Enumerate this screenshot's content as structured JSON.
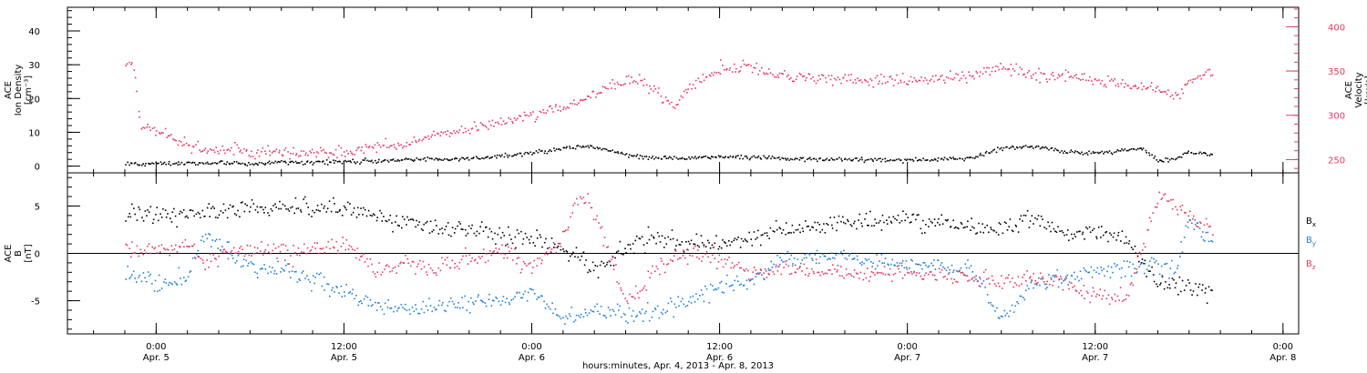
{
  "figure": {
    "xlabel": "hours:minutes, Apr.  4, 2013 - Apr.  8, 2013"
  },
  "colors": {
    "density": "#000000",
    "velocity": "#e8385f",
    "bx": "#000000",
    "by": "#1e80d8",
    "bz": "#e8385f",
    "axis": "#000000"
  },
  "chart_data": [
    {
      "id": "top-panel",
      "type": "scatter",
      "time_range": [
        "2013-04-04 18:20",
        "2013-04-08 01:00"
      ],
      "x_ticks": [
        {
          "time": "2013-04-05 00:00",
          "hm": "0:00",
          "date": "Apr. 5"
        },
        {
          "time": "2013-04-05 12:00",
          "hm": "12:00",
          "date": "Apr. 5"
        },
        {
          "time": "2013-04-06 00:00",
          "hm": "0:00",
          "date": "Apr. 6"
        },
        {
          "time": "2013-04-06 12:00",
          "hm": "12:00",
          "date": "Apr. 6"
        },
        {
          "time": "2013-04-07 00:00",
          "hm": "0:00",
          "date": "Apr. 7"
        },
        {
          "time": "2013-04-07 12:00",
          "hm": "12:00",
          "date": "Apr. 7"
        },
        {
          "time": "2013-04-08 00:00",
          "hm": "0:00",
          "date": "Apr. 8"
        }
      ],
      "left_axis": {
        "label_lines": [
          "ACE",
          "Ion Density",
          "[cm⁻³]"
        ],
        "ylim": [
          -2,
          47
        ],
        "ticks": [
          0,
          10,
          20,
          30,
          40
        ],
        "tick_labels": [
          "0",
          "10",
          "20",
          "30",
          "40"
        ]
      },
      "right_axis": {
        "label_lines": [
          "ACE",
          "Velocity",
          "[km/s]"
        ],
        "ylim": [
          235,
          422
        ],
        "ticks": [
          250,
          300,
          350,
          400
        ],
        "tick_labels": [
          "250",
          "300",
          "350",
          "400"
        ]
      },
      "series": [
        {
          "key": "density",
          "axis": "left",
          "x": [
            "2013-04-04 22:00",
            "2013-04-05 00:00",
            "2013-04-05 04:00",
            "2013-04-05 08:00",
            "2013-04-05 12:00",
            "2013-04-05 16:00",
            "2013-04-05 20:00",
            "2013-04-05 22:00",
            "2013-04-06 00:00",
            "2013-04-06 02:00",
            "2013-04-06 04:00",
            "2013-04-06 06:00",
            "2013-04-06 08:00",
            "2013-04-06 10:00",
            "2013-04-06 12:00",
            "2013-04-06 16:00",
            "2013-04-06 20:00",
            "2013-04-07 00:00",
            "2013-04-07 04:00",
            "2013-04-07 06:00",
            "2013-04-07 08:00",
            "2013-04-07 10:00",
            "2013-04-07 12:00",
            "2013-04-07 14:00",
            "2013-04-07 15:00",
            "2013-04-07 16:00",
            "2013-04-07 17:00",
            "2013-04-07 18:00",
            "2013-04-07 19:30"
          ],
          "y": [
            0.8,
            1.0,
            1.0,
            1.2,
            1.5,
            2.0,
            2.5,
            3.0,
            4.0,
            5.5,
            6.0,
            3.5,
            2.5,
            2.5,
            3.0,
            2.5,
            2.0,
            2.0,
            2.5,
            5.5,
            6.0,
            4.5,
            4.0,
            5.0,
            5.5,
            2.0,
            2.0,
            4.5,
            3.5
          ]
        },
        {
          "key": "velocity",
          "axis": "right",
          "x": [
            "2013-04-04 22:00",
            "2013-04-04 22:30",
            "2013-04-04 23:00",
            "2013-04-05 00:00",
            "2013-04-05 02:00",
            "2013-04-05 04:00",
            "2013-04-05 08:00",
            "2013-04-05 12:00",
            "2013-04-05 16:00",
            "2013-04-05 20:00",
            "2013-04-06 00:00",
            "2013-04-06 03:00",
            "2013-04-06 05:00",
            "2013-04-06 07:00",
            "2013-04-06 09:00",
            "2013-04-06 10:00",
            "2013-04-06 12:00",
            "2013-04-06 14:00",
            "2013-04-06 16:00",
            "2013-04-06 20:00",
            "2013-04-07 00:00",
            "2013-04-07 04:00",
            "2013-04-07 06:00",
            "2013-04-07 08:00",
            "2013-04-07 10:00",
            "2013-04-07 12:00",
            "2013-04-07 14:00",
            "2013-04-07 16:00",
            "2013-04-07 17:00",
            "2013-04-07 18:00",
            "2013-04-07 19:30"
          ],
          "y": [
            362,
            358,
            290,
            285,
            265,
            262,
            258,
            260,
            270,
            285,
            300,
            315,
            335,
            340,
            310,
            330,
            355,
            355,
            345,
            340,
            340,
            345,
            355,
            345,
            345,
            340,
            335,
            330,
            320,
            340,
            350
          ]
        }
      ]
    },
    {
      "id": "bottom-panel",
      "type": "scatter",
      "time_range": [
        "2013-04-04 18:20",
        "2013-04-08 01:00"
      ],
      "x_ticks": [
        {
          "time": "2013-04-05 00:00",
          "hm": "0:00",
          "date": "Apr. 5"
        },
        {
          "time": "2013-04-05 12:00",
          "hm": "12:00",
          "date": "Apr. 5"
        },
        {
          "time": "2013-04-06 00:00",
          "hm": "0:00",
          "date": "Apr. 6"
        },
        {
          "time": "2013-04-06 12:00",
          "hm": "12:00",
          "date": "Apr. 6"
        },
        {
          "time": "2013-04-07 00:00",
          "hm": "0:00",
          "date": "Apr. 7"
        },
        {
          "time": "2013-04-07 12:00",
          "hm": "12:00",
          "date": "Apr. 7"
        },
        {
          "time": "2013-04-08 00:00",
          "hm": "0:00",
          "date": "Apr. 8"
        }
      ],
      "left_axis": {
        "label_lines": [
          "ACE",
          "B",
          "[nT]"
        ],
        "ylim": [
          -8.5,
          8.5
        ],
        "ticks": [
          -5,
          0,
          5
        ],
        "tick_labels": [
          "-5",
          "0",
          "5"
        ]
      },
      "zero_line": true,
      "legend": [
        {
          "key": "bx",
          "label": "B",
          "sub": "x"
        },
        {
          "key": "by",
          "label": "B",
          "sub": "y"
        },
        {
          "key": "bz",
          "label": "B",
          "sub": "z"
        }
      ],
      "series": [
        {
          "key": "bx",
          "x": [
            "2013-04-04 22:00",
            "2013-04-05 00:00",
            "2013-04-05 03:00",
            "2013-04-05 06:00",
            "2013-04-05 09:00",
            "2013-04-05 12:00",
            "2013-04-05 14:00",
            "2013-04-05 16:00",
            "2013-04-05 18:00",
            "2013-04-05 20:00",
            "2013-04-05 22:00",
            "2013-04-06 00:00",
            "2013-04-06 02:00",
            "2013-04-06 04:00",
            "2013-04-06 06:00",
            "2013-04-06 08:00",
            "2013-04-06 10:00",
            "2013-04-06 12:00",
            "2013-04-06 14:00",
            "2013-04-06 16:00",
            "2013-04-06 20:00",
            "2013-04-07 00:00",
            "2013-04-07 04:00",
            "2013-04-07 06:00",
            "2013-04-07 08:00",
            "2013-04-07 10:00",
            "2013-04-07 12:00",
            "2013-04-07 14:00",
            "2013-04-07 16:00",
            "2013-04-07 18:00",
            "2013-04-07 19:30"
          ],
          "y": [
            4.5,
            4.0,
            4.5,
            4.8,
            5.0,
            4.8,
            4.0,
            3.5,
            2.8,
            2.5,
            2.0,
            1.5,
            0.5,
            -1.5,
            0.5,
            2.0,
            1.0,
            1.0,
            2.0,
            2.5,
            3.5,
            3.5,
            3.0,
            2.5,
            4.0,
            2.0,
            2.5,
            1.5,
            -3.0,
            -3.5,
            -4.0
          ]
        },
        {
          "key": "by",
          "x": [
            "2013-04-04 22:00",
            "2013-04-05 00:00",
            "2013-04-05 02:00",
            "2013-04-05 03:00",
            "2013-04-05 06:00",
            "2013-04-05 09:00",
            "2013-04-05 12:00",
            "2013-04-05 14:00",
            "2013-04-05 16:00",
            "2013-04-05 18:00",
            "2013-04-05 20:00",
            "2013-04-05 22:00",
            "2013-04-06 00:00",
            "2013-04-06 02:00",
            "2013-04-06 04:00",
            "2013-04-06 06:00",
            "2013-04-06 08:00",
            "2013-04-06 10:00",
            "2013-04-06 12:00",
            "2013-04-06 14:00",
            "2013-04-06 16:00",
            "2013-04-06 20:00",
            "2013-04-07 00:00",
            "2013-04-07 04:00",
            "2013-04-07 06:00",
            "2013-04-07 08:00",
            "2013-04-07 10:00",
            "2013-04-07 12:00",
            "2013-04-07 14:00",
            "2013-04-07 16:00",
            "2013-04-07 17:00",
            "2013-04-07 18:00",
            "2013-04-07 19:30"
          ],
          "y": [
            -2.0,
            -3.0,
            -2.5,
            2.0,
            -1.5,
            -2.0,
            -4.0,
            -5.5,
            -6.0,
            -5.5,
            -5.0,
            -5.0,
            -4.0,
            -7.0,
            -6.0,
            -6.5,
            -6.0,
            -5.0,
            -3.5,
            -3.0,
            -0.5,
            -0.5,
            -1.0,
            -1.5,
            -7.0,
            -3.0,
            -2.5,
            -2.0,
            -1.5,
            -1.0,
            -2.0,
            3.5,
            1.0
          ]
        },
        {
          "key": "bz",
          "x": [
            "2013-04-04 22:00",
            "2013-04-05 00:00",
            "2013-04-05 02:00",
            "2013-04-05 03:00",
            "2013-04-05 06:00",
            "2013-04-05 09:00",
            "2013-04-05 12:00",
            "2013-04-05 14:00",
            "2013-04-05 16:00",
            "2013-04-05 18:00",
            "2013-04-05 20:00",
            "2013-04-05 22:00",
            "2013-04-06 00:00",
            "2013-04-06 02:00",
            "2013-04-06 03:00",
            "2013-04-06 04:00",
            "2013-04-06 06:00",
            "2013-04-06 08:00",
            "2013-04-06 10:00",
            "2013-04-06 12:00",
            "2013-04-06 14:00",
            "2013-04-06 16:00",
            "2013-04-06 20:00",
            "2013-04-07 00:00",
            "2013-04-07 04:00",
            "2013-04-07 06:00",
            "2013-04-07 08:00",
            "2013-04-07 10:00",
            "2013-04-07 12:00",
            "2013-04-07 14:00",
            "2013-04-07 16:00",
            "2013-04-07 17:00",
            "2013-04-07 18:00",
            "2013-04-07 19:30"
          ],
          "y": [
            0.5,
            0.5,
            1.0,
            -1.0,
            0.5,
            0.0,
            1.5,
            -2.0,
            -1.0,
            -1.5,
            -0.5,
            0.5,
            -1.5,
            2.0,
            6.5,
            4.0,
            -5.0,
            -1.5,
            0.0,
            -0.5,
            -2.0,
            -1.5,
            -2.0,
            -2.0,
            -2.5,
            -3.0,
            -2.5,
            -3.0,
            -4.5,
            -4.5,
            6.0,
            5.5,
            4.0,
            2.5
          ]
        }
      ]
    }
  ]
}
